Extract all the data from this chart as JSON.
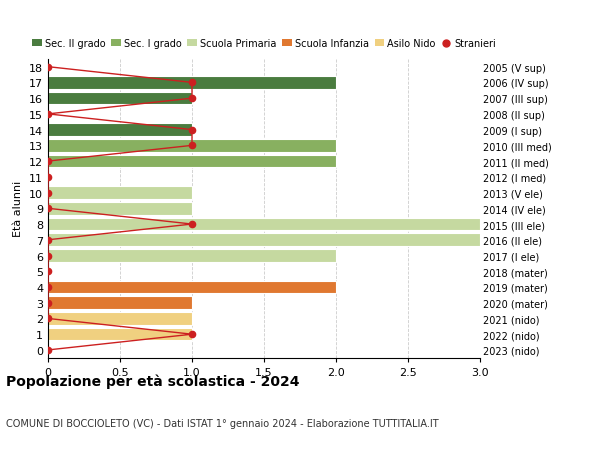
{
  "ages": [
    0,
    1,
    2,
    3,
    4,
    5,
    6,
    7,
    8,
    9,
    10,
    11,
    12,
    13,
    14,
    15,
    16,
    17,
    18
  ],
  "year_labels": [
    "2023 (nido)",
    "2022 (nido)",
    "2021 (nido)",
    "2020 (mater)",
    "2019 (mater)",
    "2018 (mater)",
    "2017 (I ele)",
    "2016 (II ele)",
    "2015 (III ele)",
    "2014 (IV ele)",
    "2013 (V ele)",
    "2012 (I med)",
    "2011 (II med)",
    "2010 (III med)",
    "2009 (I sup)",
    "2008 (II sup)",
    "2007 (III sup)",
    "2006 (IV sup)",
    "2005 (V sup)"
  ],
  "bar_values": [
    0,
    1,
    1,
    1,
    2,
    0,
    2,
    3,
    3,
    1,
    1,
    0,
    2,
    2,
    1,
    0,
    1,
    2,
    0
  ],
  "stranieri": [
    0,
    1,
    0,
    0,
    0,
    0,
    0,
    0,
    1,
    0,
    0,
    0,
    0,
    1,
    1,
    0,
    1,
    1,
    0
  ],
  "bar_colors": [
    "#f0d080",
    "#f0d080",
    "#f0d080",
    "#e07830",
    "#e07830",
    "#e07830",
    "#c5d9a0",
    "#c5d9a0",
    "#c5d9a0",
    "#c5d9a0",
    "#c5d9a0",
    "#88b060",
    "#88b060",
    "#88b060",
    "#4a7c3f",
    "#4a7c3f",
    "#4a7c3f",
    "#4a7c3f",
    "#4a7c3f"
  ],
  "legend_labels": [
    "Sec. II grado",
    "Sec. I grado",
    "Scuola Primaria",
    "Scuola Infanzia",
    "Asilo Nido",
    "Stranieri"
  ],
  "legend_colors": [
    "#4a7c3f",
    "#88b060",
    "#c5d9a0",
    "#e07830",
    "#f0d080",
    "#cc2020"
  ],
  "ylabel": "Età alunni",
  "title": "Popolazione per età scolastica - 2024",
  "subtitle": "COMUNE DI BOCCIOLETO (VC) - Dati ISTAT 1° gennaio 2024 - Elaborazione TUTTITALIA.IT",
  "xlim": [
    0,
    3.0
  ],
  "xticks": [
    0,
    0.5,
    1.0,
    1.5,
    2.0,
    2.5,
    3.0
  ],
  "xtick_labels": [
    "0",
    "0.5",
    "1.0",
    "1.5",
    "2.0",
    "2.5",
    "3.0"
  ],
  "background_color": "#ffffff",
  "grid_color": "#cccccc",
  "stranieri_color": "#cc2020",
  "bar_height": 0.8
}
